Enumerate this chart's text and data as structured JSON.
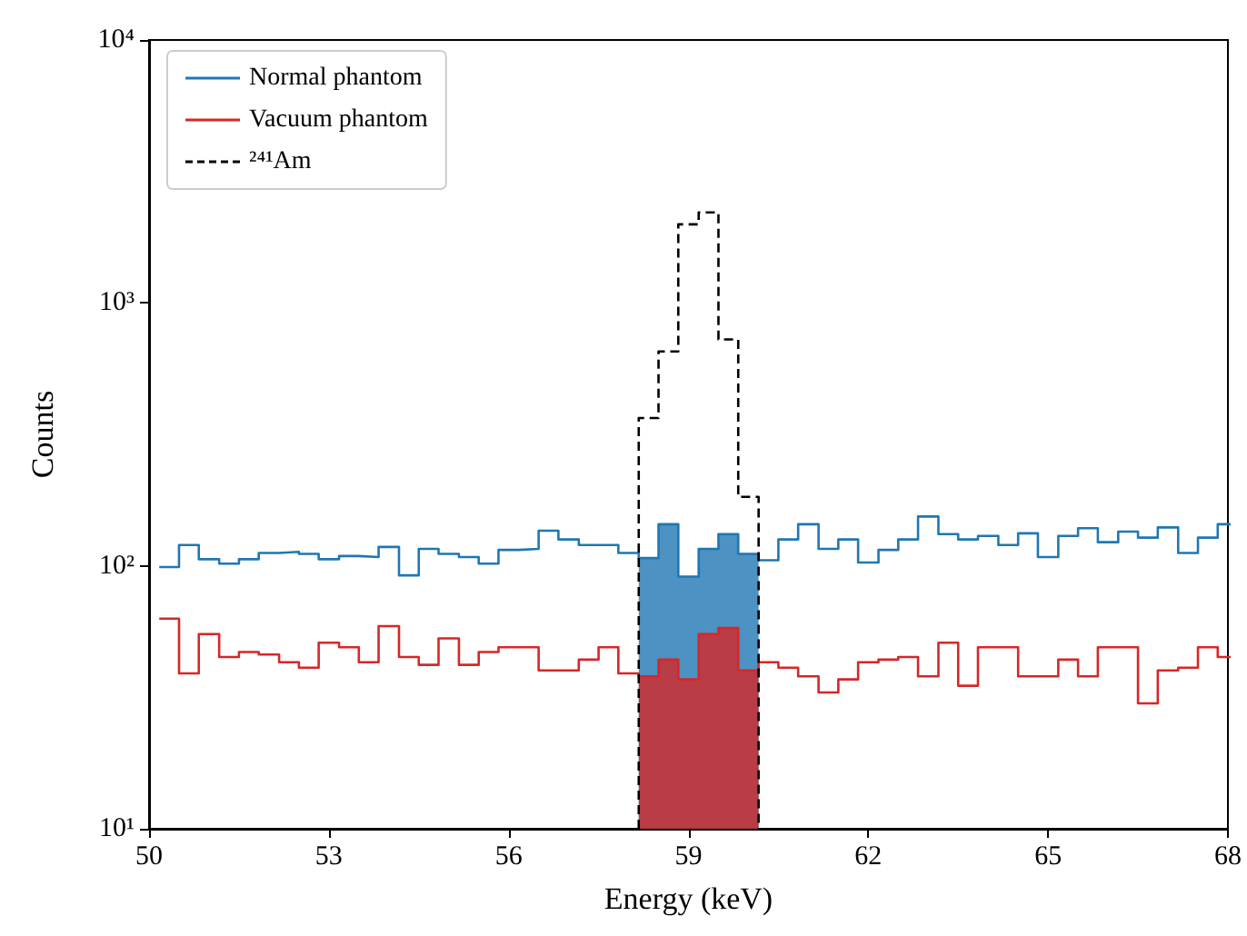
{
  "chart_data": {
    "type": "step",
    "xlabel": "Energy (keV)",
    "ylabel": "Counts",
    "x": [
      50.17,
      50.5,
      50.83,
      51.17,
      51.5,
      51.83,
      52.17,
      52.5,
      52.83,
      53.17,
      53.5,
      53.83,
      54.17,
      54.5,
      54.83,
      55.17,
      55.5,
      55.83,
      56.17,
      56.5,
      56.83,
      57.17,
      57.5,
      57.83,
      58.17,
      58.5,
      58.83,
      59.17,
      59.5,
      59.83,
      60.17,
      60.5,
      60.83,
      61.17,
      61.5,
      61.83,
      62.17,
      62.5,
      62.83,
      63.17,
      63.5,
      63.83,
      64.17,
      64.5,
      64.83,
      65.17,
      65.5,
      65.83,
      66.17,
      66.5,
      66.83,
      67.17,
      67.5,
      67.83
    ],
    "series": [
      {
        "name": "Normal phantom",
        "color": "#1f77b4",
        "line_style": "solid",
        "values": [
          99,
          120,
          106,
          102,
          106,
          112,
          113,
          111,
          106,
          109,
          108,
          118,
          92,
          116,
          111,
          108,
          102,
          115,
          116,
          136,
          126,
          120,
          120,
          112,
          107,
          144,
          91,
          116,
          132,
          111,
          105,
          126,
          144,
          116,
          126,
          103,
          115,
          126,
          154,
          132,
          126,
          130,
          120,
          133,
          108,
          130,
          139,
          123,
          135,
          128,
          140,
          112,
          128,
          144
        ]
      },
      {
        "name": "Vacuum phantom",
        "color": "#d62728",
        "line_style": "solid",
        "values": [
          63,
          39,
          55,
          45,
          47,
          46,
          43,
          41,
          51,
          49,
          43,
          59,
          45,
          42,
          53,
          42,
          47,
          49,
          49,
          40,
          40,
          44,
          49,
          39,
          38,
          44,
          37,
          55,
          58,
          40,
          43,
          41,
          38,
          33,
          37,
          43,
          44,
          45,
          38,
          51,
          35,
          49,
          49,
          38,
          38,
          44,
          38,
          49,
          49,
          30,
          40,
          41,
          49,
          45
        ]
      },
      {
        "name": "²⁴¹Am",
        "type": "histogram",
        "color": "#000000",
        "line_style": "dashed",
        "bins": [
          58.17,
          58.5,
          58.83,
          59.17,
          59.5,
          59.83,
          60.17
        ],
        "values": [
          365,
          654,
          1990,
          2210,
          726,
          183
        ]
      },
      {
        "type": "histogram",
        "color": "#1f77b4",
        "bins": [
          58.17,
          58.5,
          58.83,
          59.17,
          59.5,
          59.83,
          60.17
        ],
        "values": [
          107,
          144,
          91,
          116,
          132,
          111
        ]
      },
      {
        "type": "histogram",
        "color": "#d62728",
        "bins": [
          58.17,
          58.5,
          58.83,
          59.17,
          59.5,
          59.83,
          60.17
        ],
        "values": [
          38,
          44,
          37,
          55,
          58,
          40
        ]
      }
    ],
    "log": "y",
    "xlim": [
      50,
      68
    ],
    "xticks": [
      50,
      53,
      56,
      59,
      62,
      65,
      68
    ],
    "ylim": [
      10,
      10000
    ],
    "yticks": [
      {
        "value": 10,
        "label": "10¹"
      },
      {
        "value": 100,
        "label": "10²"
      },
      {
        "value": 1000,
        "label": "10³"
      },
      {
        "value": 10000,
        "label": "10⁴"
      }
    ],
    "grid": false,
    "legend": "top left",
    "marker": "none"
  }
}
